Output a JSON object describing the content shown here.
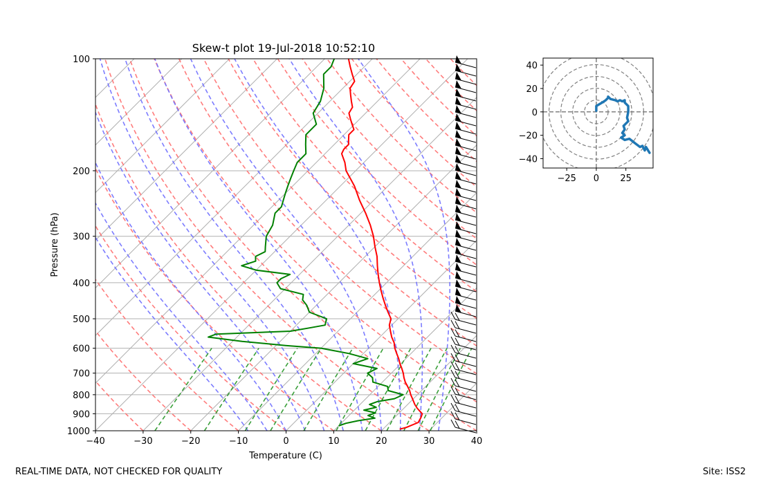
{
  "chart_data": [
    {
      "type": "skew-t",
      "title": "Skew-t plot 19-Jul-2018 10:52:10",
      "xlabel": "Temperature (C)",
      "ylabel": "Pressure (hPa)",
      "xlim": [
        -40,
        40
      ],
      "ylim": [
        1000,
        100
      ],
      "y_scale": "log",
      "x_ticks": [
        "−40",
        "−30",
        "−20",
        "−10",
        "0",
        "10",
        "20",
        "30",
        "40"
      ],
      "y_ticks": [
        "100",
        "200",
        "300",
        "400",
        "500",
        "600",
        "700",
        "800",
        "900",
        "1000"
      ],
      "grid": true,
      "colors": {
        "temperature": "#ff0000",
        "dewpoint": "#008000",
        "dry_adiabats": "#ff6e6e",
        "moist_adiabats": "#6e6eff",
        "mixing_ratio": "#2e9a2e",
        "isotherms": "#b0b0b0",
        "barbs": "#000000"
      },
      "series": [
        {
          "pressure": [
            990,
            980,
            950,
            920,
            900,
            870,
            850,
            820,
            800,
            780,
            760,
            740,
            720,
            700,
            680,
            660,
            640,
            620,
            600,
            580,
            560,
            540,
            520,
            500,
            480,
            460,
            440,
            420,
            400,
            380,
            360,
            340,
            320,
            300,
            280,
            260,
            240,
            220,
            200,
            190,
            180,
            175,
            170,
            165,
            160,
            155,
            150,
            145,
            140,
            135,
            130,
            125,
            120,
            115,
            110,
            105,
            100
          ],
          "values": [
            23.5,
            24.5,
            26,
            25.5,
            25,
            22.8,
            21.5,
            19.8,
            18.6,
            17.5,
            16.2,
            14.8,
            13.6,
            12.5,
            11.2,
            9.8,
            8.5,
            7.0,
            5.5,
            4.2,
            2.5,
            1.0,
            -0.5,
            -1.5,
            -3.5,
            -5.5,
            -7.5,
            -9.5,
            -11.5,
            -13.5,
            -15.5,
            -17.5,
            -20,
            -22.5,
            -25.5,
            -29,
            -33,
            -37,
            -42,
            -44,
            -46.5,
            -47,
            -47,
            -48,
            -49,
            -49,
            -50.5,
            -52,
            -53.5,
            -54,
            -55.5,
            -57,
            -58.5,
            -59,
            -61,
            -63,
            -65
          ]
        },
        {
          "pressure": [
            970,
            955,
            940,
            925,
            910,
            895,
            880,
            865,
            850,
            835,
            820,
            800,
            780,
            760,
            740,
            720,
            700,
            680,
            660,
            640,
            620,
            600,
            590,
            575,
            560,
            550,
            540,
            530,
            520,
            500,
            480,
            460,
            445,
            430,
            415,
            400,
            390,
            380,
            370,
            360,
            350,
            340,
            330,
            320,
            300,
            280,
            260,
            250,
            240,
            230,
            220,
            210,
            200,
            190,
            180,
            170,
            160,
            150,
            140,
            130,
            120,
            110,
            105,
            100
          ],
          "values": [
            10,
            11,
            13,
            16,
            14,
            15,
            12,
            14,
            12,
            13,
            16,
            17,
            13,
            12,
            8,
            7,
            5,
            6,
            0,
            2,
            -3,
            -10,
            -18,
            -28,
            -36,
            -35,
            -20,
            -17,
            -14,
            -15,
            -20,
            -22,
            -24,
            -25,
            -31,
            -33,
            -33,
            -32,
            -40,
            -44,
            -42,
            -43,
            -42,
            -43,
            -45,
            -46,
            -48,
            -48,
            -49,
            -50,
            -51,
            -52,
            -53,
            -54,
            -54,
            -56,
            -58,
            -58,
            -61,
            -62,
            -64,
            -67,
            -67,
            -68
          ]
        }
      ]
    },
    {
      "type": "hodograph",
      "xlim": [
        -45,
        48
      ],
      "ylim": [
        -48,
        46
      ],
      "x_ticks": [
        "−25",
        "0",
        "25"
      ],
      "y_ticks": [
        "40",
        "20",
        "0",
        "−20",
        "−40"
      ],
      "rings": [
        10,
        20,
        30,
        40,
        50
      ],
      "color": "#1f77b4",
      "x": [
        0,
        0,
        5,
        8,
        10,
        10,
        12,
        16,
        18,
        20,
        22,
        24,
        24,
        27,
        27,
        26,
        27,
        25,
        23,
        24,
        22,
        24,
        21,
        24,
        28,
        33,
        37,
        39,
        41,
        42,
        45
      ],
      "y": [
        1,
        5,
        8,
        10,
        12,
        13,
        11,
        10,
        9,
        10,
        9,
        10,
        8,
        5,
        0,
        -5,
        -8,
        -10,
        -12,
        -15,
        -18,
        -20,
        -22,
        -24,
        -23,
        -27,
        -30,
        -29,
        -33,
        -30,
        -35
      ]
    }
  ],
  "footer": {
    "left": "REAL-TIME DATA, NOT CHECKED FOR QUALITY",
    "right": "Site: ISS2"
  }
}
